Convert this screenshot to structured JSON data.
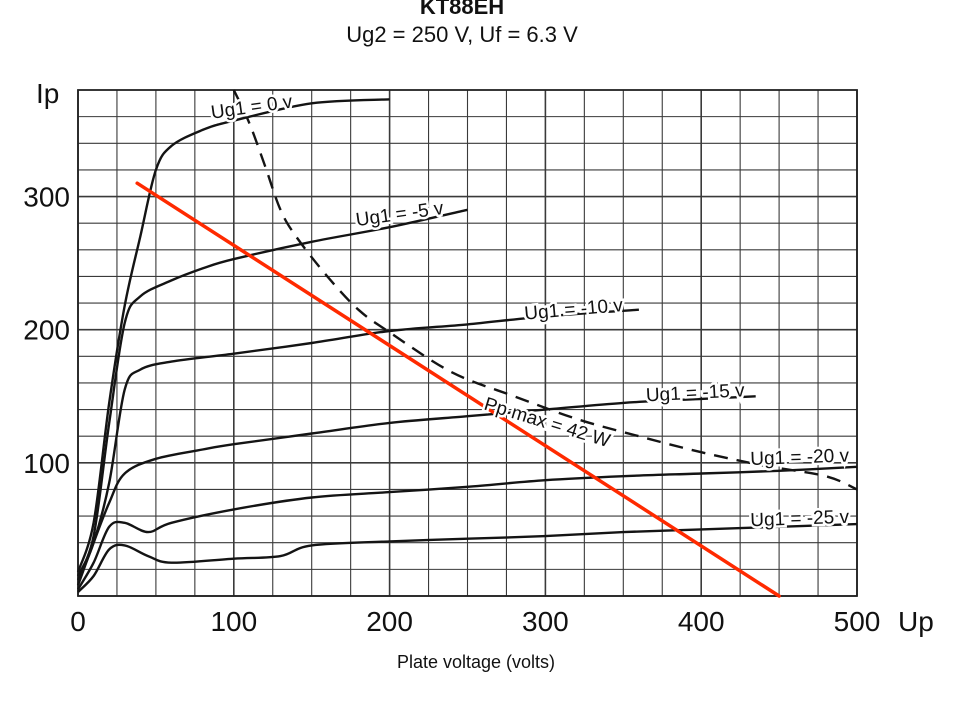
{
  "chart_data": {
    "type": "line",
    "title": "KT88EH",
    "subtitle": "Ug2 = 250 V, Uf = 6.3 V",
    "xlabel": "Plate voltage (volts)",
    "x_axis_name": "Up",
    "y_axis_name": "Ip",
    "xlim": [
      0,
      500
    ],
    "ylim": [
      0,
      380
    ],
    "x_ticks": [
      0,
      100,
      200,
      300,
      400,
      500
    ],
    "y_ticks": [
      100,
      200,
      300
    ],
    "grid": true,
    "series": [
      {
        "name": "Ug1 = 0 v",
        "label": "Ug1 = 0 v",
        "points": [
          [
            0,
            18
          ],
          [
            10,
            55
          ],
          [
            20,
            145
          ],
          [
            30,
            218
          ],
          [
            40,
            270
          ],
          [
            50,
            320
          ],
          [
            60,
            338
          ],
          [
            80,
            350
          ],
          [
            100,
            357
          ],
          [
            150,
            370
          ],
          [
            200,
            373
          ]
        ]
      },
      {
        "name": "Ug1 = -5 v",
        "label": "Ug1 = -5 v",
        "points": [
          [
            0,
            15
          ],
          [
            10,
            45
          ],
          [
            20,
            130
          ],
          [
            30,
            205
          ],
          [
            40,
            225
          ],
          [
            60,
            237
          ],
          [
            80,
            246
          ],
          [
            100,
            253
          ],
          [
            150,
            266
          ],
          [
            200,
            277
          ],
          [
            250,
            290
          ]
        ]
      },
      {
        "name": "Ug1 = -10 v",
        "label": "Ug1 = -10 v",
        "points": [
          [
            0,
            12
          ],
          [
            10,
            40
          ],
          [
            20,
            85
          ],
          [
            30,
            155
          ],
          [
            40,
            170
          ],
          [
            60,
            176
          ],
          [
            100,
            182
          ],
          [
            150,
            190
          ],
          [
            200,
            199
          ],
          [
            250,
            204
          ],
          [
            300,
            210
          ],
          [
            360,
            215
          ]
        ]
      },
      {
        "name": "Ug1 = -15 v",
        "label": "Ug1 = -15 v",
        "points": [
          [
            0,
            8
          ],
          [
            10,
            40
          ],
          [
            20,
            70
          ],
          [
            30,
            92
          ],
          [
            50,
            103
          ],
          [
            80,
            110
          ],
          [
            100,
            114
          ],
          [
            150,
            122
          ],
          [
            200,
            130
          ],
          [
            250,
            135
          ],
          [
            300,
            140
          ],
          [
            350,
            145
          ],
          [
            400,
            148
          ],
          [
            435,
            150
          ]
        ]
      },
      {
        "name": "Ug1 = -20 v",
        "label": "Ug1 = -20 v",
        "points": [
          [
            0,
            5
          ],
          [
            10,
            25
          ],
          [
            20,
            52
          ],
          [
            30,
            55
          ],
          [
            45,
            48
          ],
          [
            60,
            55
          ],
          [
            100,
            65
          ],
          [
            150,
            74
          ],
          [
            200,
            78
          ],
          [
            250,
            82
          ],
          [
            300,
            87
          ],
          [
            350,
            90
          ],
          [
            400,
            92
          ],
          [
            450,
            94
          ],
          [
            500,
            97
          ]
        ]
      },
      {
        "name": "Ug1 = -25 v",
        "label": "Ug1 = -25 v",
        "points": [
          [
            0,
            3
          ],
          [
            10,
            15
          ],
          [
            20,
            35
          ],
          [
            30,
            38
          ],
          [
            45,
            30
          ],
          [
            60,
            25
          ],
          [
            100,
            28
          ],
          [
            130,
            30
          ],
          [
            150,
            38
          ],
          [
            200,
            41
          ],
          [
            250,
            43
          ],
          [
            300,
            45
          ],
          [
            350,
            48
          ],
          [
            400,
            50
          ],
          [
            450,
            52
          ],
          [
            500,
            54
          ]
        ]
      }
    ],
    "power_curve": {
      "name": "Pp max = 42 W",
      "label": "Pp max = 42 W",
      "points": [
        [
          100,
          380
        ],
        [
          110,
          355
        ],
        [
          120,
          323
        ],
        [
          130,
          290
        ],
        [
          140,
          270
        ],
        [
          160,
          240
        ],
        [
          180,
          215
        ],
        [
          200,
          198
        ],
        [
          240,
          168
        ],
        [
          280,
          150
        ],
        [
          320,
          133
        ],
        [
          360,
          120
        ],
        [
          400,
          108
        ],
        [
          440,
          98
        ],
        [
          480,
          90
        ],
        [
          500,
          80
        ]
      ]
    },
    "load_line": {
      "name": "load line",
      "color": "#ff2a00",
      "points": [
        [
          38,
          310
        ],
        [
          450,
          0
        ]
      ]
    },
    "line_color": "#141414"
  }
}
